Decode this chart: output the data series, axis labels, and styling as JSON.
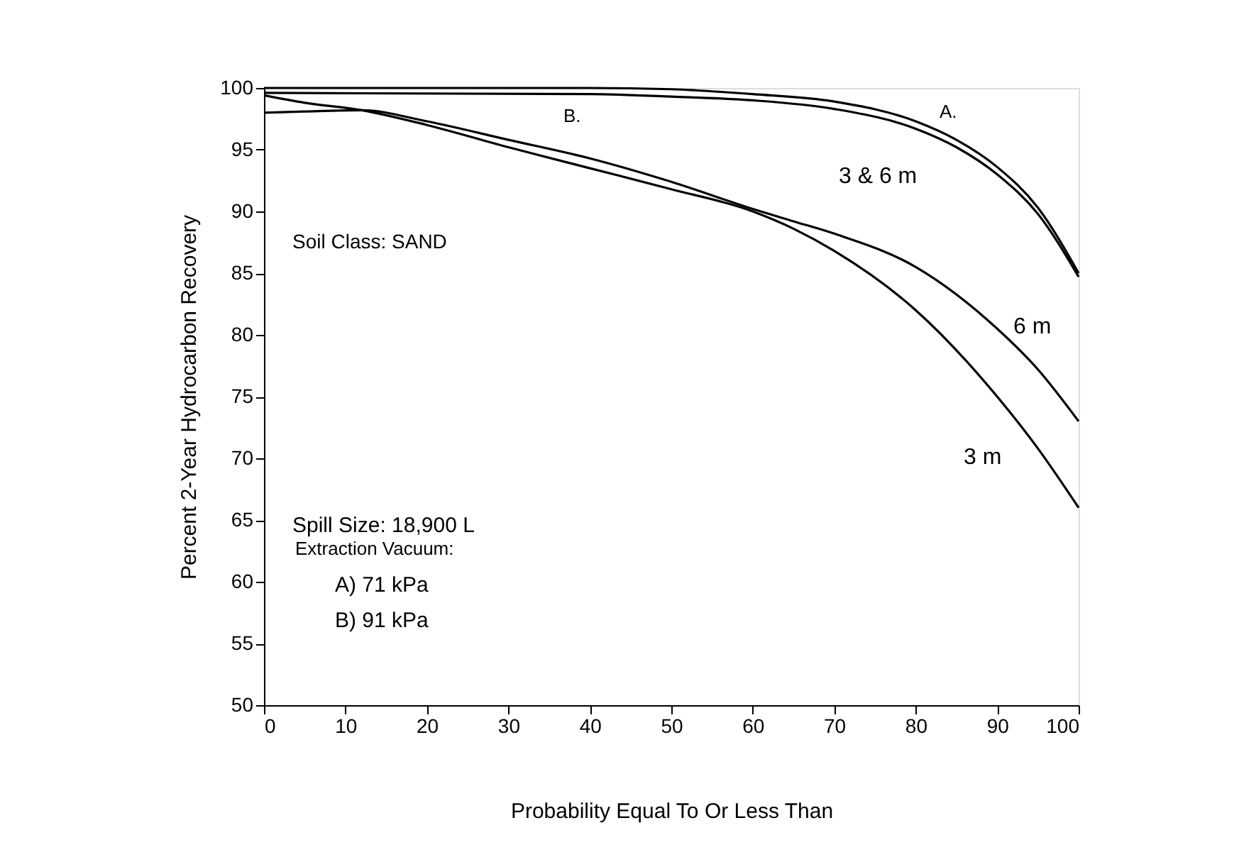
{
  "chart_data": {
    "type": "line",
    "xlabel": "Probability Equal To Or Less Than",
    "ylabel": "Percent 2-Year Hydrocarbon Recovery",
    "xlim": [
      0,
      100
    ],
    "ylim": [
      50,
      100
    ],
    "xticks": [
      0,
      10,
      20,
      30,
      40,
      50,
      60,
      70,
      80,
      90,
      100
    ],
    "yticks": [
      50,
      55,
      60,
      65,
      70,
      75,
      80,
      85,
      90,
      95,
      100
    ],
    "grid": false,
    "line_style": "solid",
    "marker": "none",
    "series": [
      {
        "color": "#000000",
        "x": [
          0,
          40,
          50,
          60,
          70,
          80,
          85,
          90,
          95,
          100
        ],
        "values": [
          100,
          100,
          99.9,
          99.5,
          98.9,
          97.3,
          95.8,
          93.6,
          90.3,
          85
        ]
      },
      {
        "color": "#000000",
        "x": [
          0,
          40,
          50,
          60,
          70,
          80,
          85,
          90,
          95,
          100
        ],
        "values": [
          99.6,
          99.5,
          99.3,
          99,
          98.3,
          96.7,
          95.2,
          93,
          89.8,
          84.7
        ]
      },
      {
        "color": "#000000",
        "x": [
          0,
          5,
          12,
          20,
          30,
          40,
          50,
          60,
          65,
          70,
          80,
          90,
          95,
          100
        ],
        "values": [
          98,
          98.1,
          98.2,
          97.3,
          95.8,
          94.3,
          92.4,
          90.2,
          89.2,
          88.2,
          85.5,
          80.5,
          77.2,
          73
        ]
      },
      {
        "color": "#000000",
        "x": [
          0,
          5,
          12,
          20,
          30,
          40,
          50,
          60,
          65,
          70,
          80,
          90,
          95,
          100
        ],
        "values": [
          99.4,
          98.8,
          98.2,
          97,
          95.2,
          93.5,
          91.8,
          90,
          88.6,
          86.8,
          82,
          75,
          70.8,
          66
        ]
      }
    ],
    "annotations": [
      "A.",
      "3 & 6 m",
      "B.",
      "6 m",
      "3 m",
      "Soil Class: SAND",
      "Spill Size: 18,900 L",
      "Extraction Vacuum:",
      "A) 71 kPa",
      "B) 91 kPa"
    ]
  }
}
